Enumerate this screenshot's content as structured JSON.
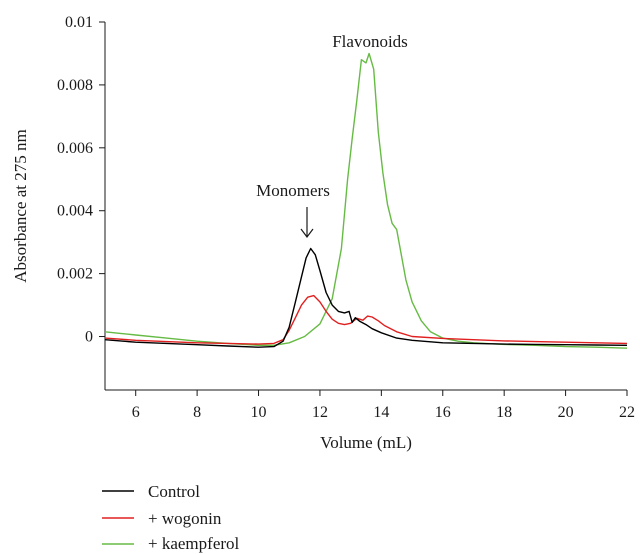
{
  "chart_data": {
    "type": "line",
    "xlabel": "Volume (mL)",
    "ylabel": "Absorbance at 275 nm",
    "xlim": [
      5,
      22
    ],
    "ylim": [
      -0.0017,
      0.01
    ],
    "xticks": [
      6,
      8,
      10,
      12,
      14,
      16,
      18,
      20,
      22
    ],
    "xtick_labels": [
      "6",
      "8",
      "10",
      "12",
      "14",
      "16",
      "18",
      "20",
      "22"
    ],
    "yticks": [
      0,
      0.002,
      0.004,
      0.006,
      0.008,
      0.01
    ],
    "ytick_labels": [
      "0",
      "0.002",
      "0.004",
      "0.006",
      "0.008",
      "0.01"
    ],
    "grid": false,
    "legend_position": "bottom-left",
    "annotations": [
      {
        "text": "Flavonoids",
        "x": 13.6,
        "y": 0.0093
      },
      {
        "text": "Monomers",
        "x": 11.6,
        "y": 0.0044,
        "arrow": true
      }
    ],
    "series": [
      {
        "name": "Control",
        "color": "#000000",
        "x": [
          5,
          6,
          7,
          8,
          9,
          10,
          10.5,
          10.8,
          11.0,
          11.2,
          11.4,
          11.55,
          11.7,
          11.85,
          12.0,
          12.2,
          12.4,
          12.6,
          12.8,
          12.95,
          13.05,
          13.15,
          13.3,
          13.5,
          13.7,
          14.0,
          14.5,
          15.0,
          16.0,
          17.0,
          18.0,
          19.0,
          20.0,
          21.0,
          22.0
        ],
        "y": [
          -0.0001,
          -0.00018,
          -0.00022,
          -0.00026,
          -0.0003,
          -0.00034,
          -0.00032,
          -0.00015,
          0.0003,
          0.0011,
          0.0019,
          0.0025,
          0.0028,
          0.0026,
          0.0021,
          0.0014,
          0.001,
          0.0008,
          0.00075,
          0.0008,
          0.00045,
          0.0006,
          0.00048,
          0.00038,
          0.00025,
          0.00012,
          -5e-05,
          -0.00012,
          -0.0002,
          -0.00022,
          -0.00024,
          -0.00025,
          -0.00026,
          -0.00027,
          -0.00028
        ]
      },
      {
        "name": "+ wogonin",
        "color": "#e02020",
        "x": [
          5,
          6,
          7,
          8,
          9,
          10,
          10.5,
          10.8,
          11.0,
          11.2,
          11.4,
          11.6,
          11.8,
          12.0,
          12.2,
          12.4,
          12.6,
          12.8,
          13.0,
          13.2,
          13.4,
          13.55,
          13.7,
          13.9,
          14.1,
          14.5,
          15.0,
          16.0,
          17.0,
          18.0,
          19.0,
          20.0,
          21.0,
          22.0
        ],
        "y": [
          -5e-05,
          -0.00012,
          -0.00016,
          -0.0002,
          -0.00022,
          -0.00024,
          -0.00022,
          -0.0001,
          0.0002,
          0.0006,
          0.001,
          0.00125,
          0.0013,
          0.0011,
          0.0008,
          0.00055,
          0.00042,
          0.00038,
          0.00042,
          0.00058,
          0.00052,
          0.00065,
          0.00062,
          0.0005,
          0.00035,
          0.00015,
          0.0,
          -6e-05,
          -0.0001,
          -0.00014,
          -0.00016,
          -0.00018,
          -0.0002,
          -0.00022
        ]
      },
      {
        "name": "+ kaempferol",
        "color": "#66bb44",
        "x": [
          5,
          5.5,
          6,
          7,
          8,
          9,
          10,
          10.5,
          11.0,
          11.5,
          12.0,
          12.4,
          12.7,
          12.9,
          13.05,
          13.2,
          13.35,
          13.5,
          13.6,
          13.75,
          13.9,
          14.05,
          14.2,
          14.35,
          14.5,
          14.65,
          14.8,
          15.0,
          15.3,
          15.6,
          16.0,
          16.5,
          17.0,
          18.0,
          19.0,
          20.0,
          21.0,
          22.0
        ],
        "y": [
          0.00015,
          0.0001,
          5e-05,
          -5e-05,
          -0.00015,
          -0.00022,
          -0.00028,
          -0.00028,
          -0.0002,
          0.0,
          0.0004,
          0.0012,
          0.0028,
          0.005,
          0.0063,
          0.0075,
          0.0088,
          0.0087,
          0.009,
          0.0085,
          0.0065,
          0.0052,
          0.0042,
          0.0036,
          0.0034,
          0.0026,
          0.0018,
          0.0011,
          0.0005,
          0.00015,
          -5e-05,
          -0.00015,
          -0.0002,
          -0.00025,
          -0.00028,
          -0.00032,
          -0.00034,
          -0.00037
        ]
      }
    ]
  }
}
